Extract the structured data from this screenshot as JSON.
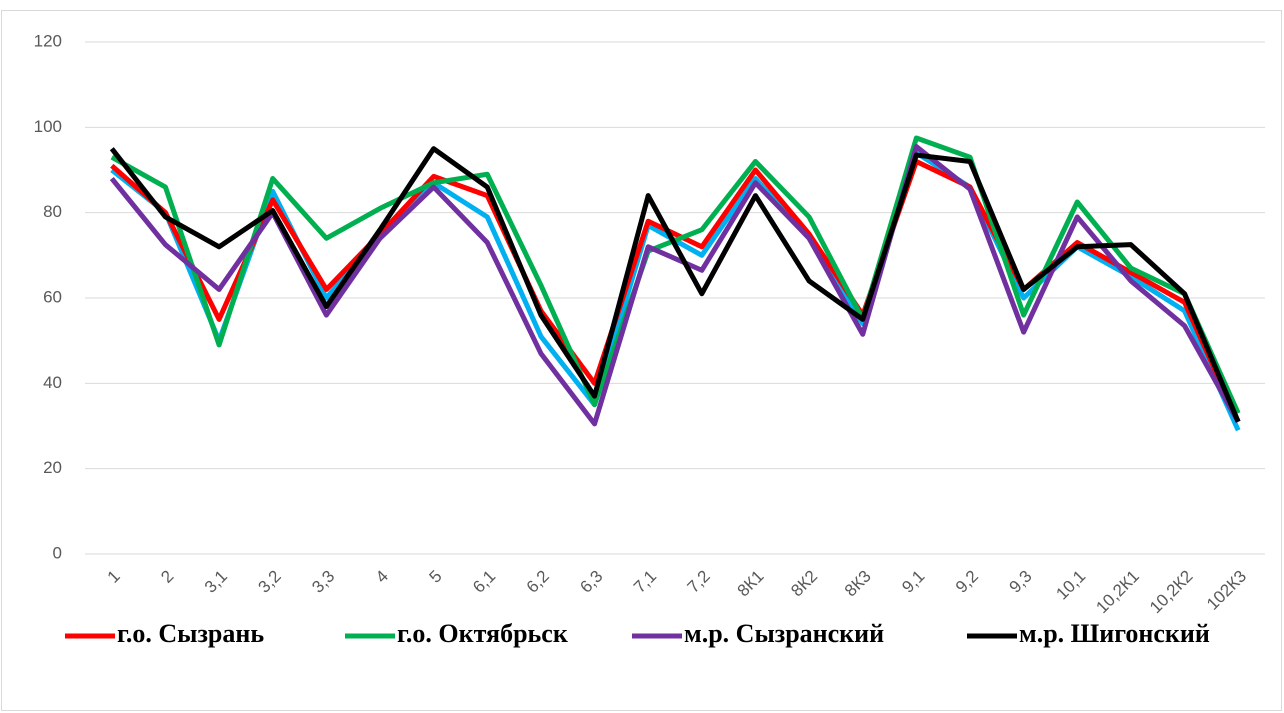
{
  "chart_data": {
    "type": "line",
    "categories": [
      "1",
      "2",
      "3,1",
      "3,2",
      "3,3",
      "4",
      "5",
      "6,1",
      "6,2",
      "6,3",
      "7,1",
      "7,2",
      "8К1",
      "8К2",
      "8К3",
      "9,1",
      "9,2",
      "9,3",
      "10,1",
      "10,2К1",
      "10,2К2",
      "102К3"
    ],
    "series": [
      {
        "color": "#00b0f0",
        "values": [
          90,
          80,
          50,
          85,
          60,
          75,
          87,
          79,
          51,
          35,
          77,
          70,
          88,
          74,
          54,
          94,
          86,
          60,
          72,
          65,
          57,
          29
        ]
      },
      {
        "name": "г.о. Сызрань",
        "color": "#ff0000",
        "values": [
          91,
          80,
          55,
          83,
          62,
          75,
          88.5,
          84,
          57,
          40,
          78,
          72,
          90,
          75,
          56,
          92,
          86,
          62,
          73,
          66,
          59,
          31
        ]
      },
      {
        "name": "г.о. Октябрьск",
        "color": "#00b050",
        "values": [
          93,
          86,
          49,
          88,
          74,
          81,
          87,
          89,
          63,
          35,
          71,
          76,
          92,
          79,
          55,
          97.5,
          93,
          56,
          82.5,
          67,
          61,
          33
        ]
      },
      {
        "name": "м.р. Сызранский",
        "color": "#7030a0",
        "values": [
          88,
          72.5,
          62,
          80,
          56,
          74,
          86,
          73,
          47,
          30.5,
          72,
          66.5,
          87,
          74,
          51.5,
          95.5,
          85.5,
          52,
          79,
          64,
          53.5,
          31
        ]
      },
      {
        "name": "м.р. Шигонский",
        "color": "#000000",
        "values": [
          95,
          79,
          72,
          80.5,
          58,
          76,
          95,
          86,
          56,
          37,
          84,
          61,
          84,
          64,
          55,
          93.5,
          92,
          62,
          72,
          72.5,
          61,
          31
        ]
      }
    ],
    "ylim": [
      0,
      120
    ],
    "yticks": [
      0,
      20,
      40,
      60,
      80,
      100,
      120
    ],
    "grid": true,
    "legend": "bottom"
  }
}
